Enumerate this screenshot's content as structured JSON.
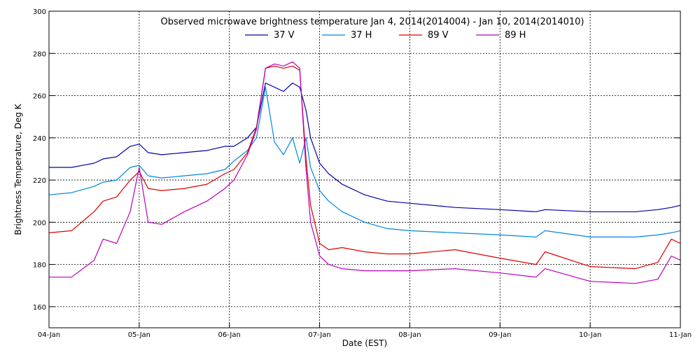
{
  "chart_data": {
    "type": "line",
    "title": "Observed microwave brightness temperature Jan  4, 2014(2014004) - Jan 10, 2014(2014010)",
    "xlabel": "Date (EST)",
    "ylabel": "Brightness Temperature, Deg K",
    "xlim": [
      0,
      7
    ],
    "ylim": [
      150,
      300
    ],
    "grid": true,
    "legend_position": "top-center",
    "x_ticks": [
      {
        "x": 0,
        "label": "04-Jan"
      },
      {
        "x": 1,
        "label": "05-Jan"
      },
      {
        "x": 2,
        "label": "06-Jan"
      },
      {
        "x": 3,
        "label": "07-Jan"
      },
      {
        "x": 4,
        "label": "08-Jan"
      },
      {
        "x": 5,
        "label": "09-Jan"
      },
      {
        "x": 6,
        "label": "10-Jan"
      },
      {
        "x": 7,
        "label": "11-Jan"
      }
    ],
    "y_ticks": [
      160,
      180,
      200,
      220,
      240,
      260,
      280,
      300
    ],
    "x": [
      0.0,
      0.25,
      0.5,
      0.6,
      0.75,
      0.9,
      1.0,
      1.1,
      1.25,
      1.5,
      1.75,
      1.95,
      2.05,
      2.2,
      2.3,
      2.4,
      2.5,
      2.6,
      2.7,
      2.78,
      2.85,
      2.9,
      3.0,
      3.1,
      3.25,
      3.5,
      3.75,
      4.0,
      4.5,
      5.0,
      5.4,
      5.5,
      6.0,
      6.5,
      6.75,
      6.9,
      7.0
    ],
    "series": [
      {
        "name": "37 V",
        "color": "#0000aa",
        "values": [
          226,
          226,
          228,
          230,
          231,
          236,
          237,
          233,
          232,
          233,
          234,
          236,
          236,
          240,
          245,
          266,
          264,
          262,
          266,
          264,
          253,
          240,
          228,
          223,
          218,
          213,
          210,
          209,
          207,
          206,
          205,
          206,
          205,
          205,
          206,
          207,
          208
        ]
      },
      {
        "name": "37 H",
        "color": "#0088dd",
        "values": [
          213,
          214,
          217,
          219,
          220,
          226,
          227,
          222,
          221,
          222,
          223,
          225,
          229,
          234,
          240,
          264,
          238,
          232,
          240,
          228,
          240,
          226,
          215,
          210,
          205,
          200,
          197,
          196,
          195,
          194,
          193,
          196,
          193,
          193,
          194,
          195,
          196
        ]
      },
      {
        "name": "89 V",
        "color": "#dd0000",
        "values": [
          195,
          196,
          205,
          210,
          212,
          220,
          224,
          216,
          215,
          216,
          218,
          223,
          225,
          233,
          245,
          273,
          274,
          273,
          274,
          272,
          230,
          208,
          190,
          187,
          188,
          186,
          185,
          185,
          187,
          183,
          180,
          186,
          179,
          178,
          181,
          192,
          190
        ]
      },
      {
        "name": "89 H",
        "color": "#bb00bb",
        "values": [
          174,
          174,
          182,
          192,
          190,
          205,
          226,
          200,
          199,
          205,
          210,
          216,
          220,
          232,
          244,
          273,
          275,
          274,
          276,
          273,
          225,
          200,
          184,
          180,
          178,
          177,
          177,
          177,
          178,
          176,
          174,
          178,
          172,
          171,
          173,
          184,
          182
        ]
      }
    ]
  }
}
